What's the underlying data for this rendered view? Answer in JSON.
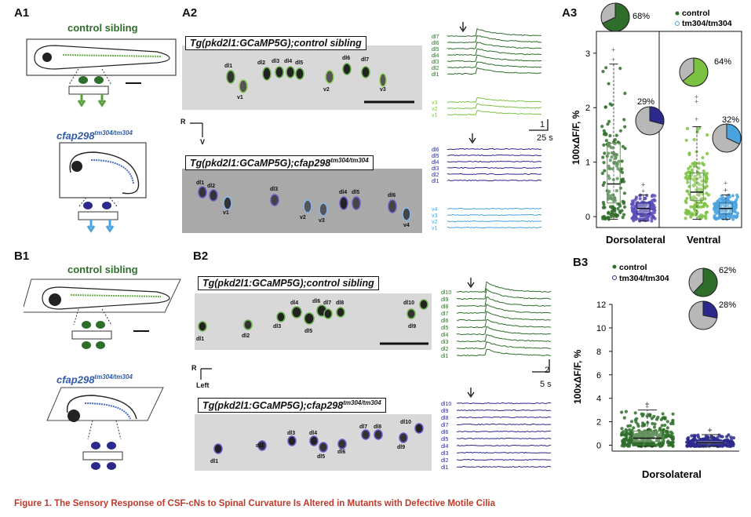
{
  "panels": {
    "a1": "A1",
    "a2": "A2",
    "a3": "A3",
    "b1": "B1",
    "b2": "B2",
    "b3": "B3"
  },
  "labels": {
    "control_sibling": "control sibling",
    "mutant_gene": "cfap298",
    "mutant_allele": "tm304/tm304",
    "a2_top_title": "Tg(pkd2l1:GCaMP5G);control sibling",
    "a2_bottom_title_main": "Tg(pkd2l1:GCaMP5G);cfap298",
    "a2_bottom_title_sup": "tm304/tm304",
    "b2_top_title": "Tg(pkd2l1:GCaMP5G);control sibling",
    "b2_bottom_title_main": "Tg(pkd2l1:GCaMP5G);cfap298",
    "b2_bottom_title_sup": "tm304/tm304",
    "orient_r": "R",
    "orient_v": "V",
    "orient_left": "Left",
    "scale_a_y": "1",
    "scale_a_x": "25 s",
    "scale_b_y": "2",
    "scale_b_x": "5 s",
    "caption": "Figure 1.  The Sensory Response of CSF-cNs to Spinal Curvature Is Altered in Mutants with Defective Motile Cilia"
  },
  "cells": {
    "a2_top": [
      "dl1",
      "dl2",
      "dl3",
      "dl4",
      "dl5",
      "dl6",
      "dl7",
      "v1",
      "v2",
      "v3"
    ],
    "a2_bottom": [
      "dl1",
      "dl2",
      "v1",
      "dl3",
      "v2",
      "v3",
      "dl4",
      "dl5",
      "dl6",
      "v4"
    ],
    "b2_top": [
      "dl1",
      "dl2",
      "dl3",
      "dl4",
      "dl5",
      "dl6",
      "dl7",
      "dl8",
      "dl9",
      "dl10"
    ],
    "b2_bottom": [
      "dl1",
      "dl2",
      "dl3",
      "dl4",
      "dl5",
      "dl6",
      "dl7",
      "dl8",
      "dl9",
      "dl10"
    ]
  },
  "traces": {
    "a_control_dl": [
      "dl7",
      "dl6",
      "dl5",
      "dl4",
      "dl3",
      "dl2",
      "dl1"
    ],
    "a_control_v": [
      "v3",
      "v2",
      "v1"
    ],
    "a_mutant_dl": [
      "dl6",
      "dl5",
      "dl4",
      "dl3",
      "dl2",
      "dl1"
    ],
    "a_mutant_v": [
      "v4",
      "v3",
      "v2",
      "v1"
    ],
    "b_control": [
      "dl10",
      "dl9",
      "dl8",
      "dl7",
      "dl6",
      "dl5",
      "dl4",
      "dl3",
      "dl2",
      "dl1"
    ],
    "b_mutant": [
      "dl10",
      "dl9",
      "dl8",
      "dl7",
      "dl6",
      "dl5",
      "dl4",
      "dl3",
      "dl2",
      "dl1"
    ]
  },
  "colors": {
    "control_dark": "#2f6e2a",
    "control_light": "#7cc242",
    "mutant_dark": "#2b2a8c",
    "mutant_light": "#4aa3df",
    "caption": "#c0392b"
  },
  "chart_data": [
    {
      "type": "scatter",
      "panel": "A3",
      "ylabel": "100xΔF/F, %",
      "ylim": [
        -0.2,
        3.4
      ],
      "yticks": [
        0,
        1,
        2,
        3
      ],
      "categories": [
        "Dorsolateral",
        "Ventral"
      ],
      "legend": [
        "control",
        "tm304/tm304"
      ],
      "series": [
        {
          "name": "control",
          "group": "Dorsolateral",
          "median": 0.6,
          "q1": 0.25,
          "q3": 1.35,
          "whisker_low": -0.05,
          "whisker_high": 2.8,
          "responding_percent": 68
        },
        {
          "name": "tm304/tm304",
          "group": "Dorsolateral",
          "median": 0.15,
          "q1": 0.05,
          "q3": 0.25,
          "whisker_low": -0.08,
          "whisker_high": 0.4,
          "responding_percent": 29
        },
        {
          "name": "control",
          "group": "Ventral",
          "median": 0.45,
          "q1": 0.3,
          "q3": 0.8,
          "whisker_low": -0.05,
          "whisker_high": 1.65,
          "responding_percent": 64
        },
        {
          "name": "tm304/tm304",
          "group": "Ventral",
          "median": 0.15,
          "q1": 0.05,
          "q3": 0.25,
          "whisker_low": -0.05,
          "whisker_high": 0.4,
          "responding_percent": 32
        }
      ],
      "percent_labels": [
        "68%",
        "29%",
        "64%",
        "32%"
      ]
    },
    {
      "type": "scatter",
      "panel": "B3",
      "ylabel": "100xΔF/F, %",
      "ylim": [
        -0.5,
        12
      ],
      "yticks": [
        0,
        2,
        4,
        6,
        8,
        10,
        12
      ],
      "categories": [
        "Dorsolateral"
      ],
      "legend": [
        "control",
        "tm304/tm304"
      ],
      "series": [
        {
          "name": "control",
          "median": 0.6,
          "q1": 0.3,
          "q3": 1.2,
          "whisker_low": -0.1,
          "whisker_high": 3.0,
          "responding_percent": 62
        },
        {
          "name": "tm304/tm304",
          "median": 0.2,
          "q1": 0.05,
          "q3": 0.4,
          "whisker_low": -0.1,
          "whisker_high": 0.9,
          "responding_percent": 28
        }
      ],
      "percent_labels": [
        "62%",
        "28%"
      ]
    }
  ]
}
